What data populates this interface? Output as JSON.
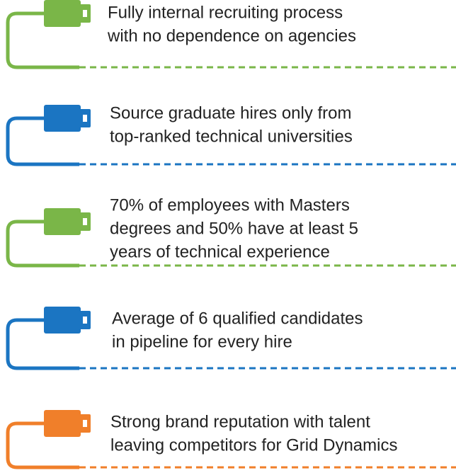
{
  "items": [
    {
      "color": "#7ab648",
      "lines": [
        "Fully internal recruiting process",
        "with no dependence on agencies"
      ]
    },
    {
      "color": "#1b75c2",
      "lines": [
        "Source graduate hires only from",
        "top-ranked technical universities"
      ]
    },
    {
      "color": "#7ab648",
      "lines": [
        "70% of employees with Masters",
        "degrees and 50% have at least 5",
        "years of technical experience"
      ]
    },
    {
      "color": "#1b75c2",
      "lines": [
        "Average of 6 qualified candidates",
        "in pipeline for every hire"
      ]
    },
    {
      "color": "#f07f2a",
      "lines": [
        "Strong brand reputation with talent",
        "leaving competitors for Grid Dynamics"
      ]
    }
  ]
}
